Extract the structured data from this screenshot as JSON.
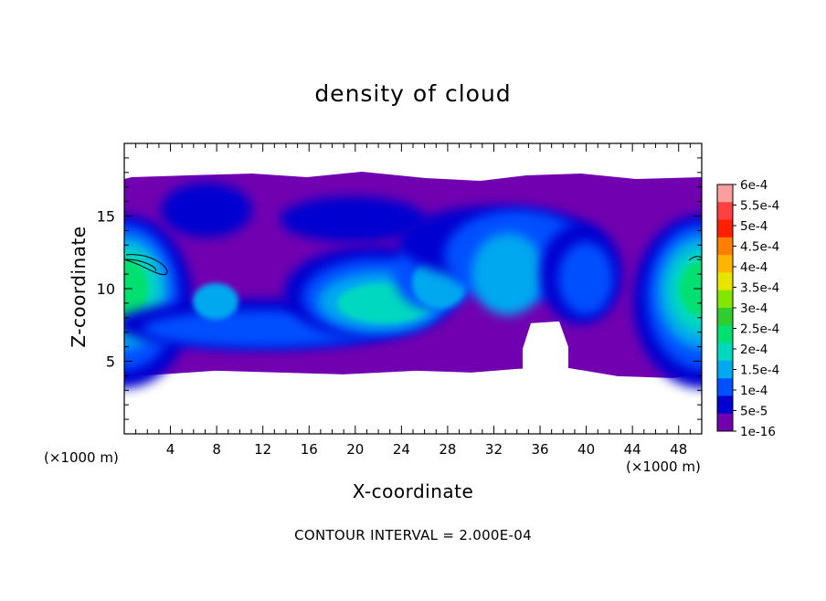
{
  "chart_data": {
    "type": "heatmap",
    "title": "density of cloud",
    "xlabel": "X-coordinate",
    "ylabel": "Z-coordinate",
    "x_unit_label": "(×1000 m)",
    "xlim": [
      0,
      50
    ],
    "ylim": [
      0,
      20
    ],
    "x_ticks": [
      4,
      8,
      12,
      16,
      20,
      24,
      28,
      32,
      36,
      40,
      44,
      48
    ],
    "y_ticks": [
      5,
      10,
      15
    ],
    "cloud_layer": {
      "base_z": 4.6,
      "top_z": 17.8
    },
    "colorbar": {
      "labels": [
        "6e-4",
        "5.5e-4",
        "5e-4",
        "4.5e-4",
        "4e-4",
        "3.5e-4",
        "3e-4",
        "2.5e-4",
        "2e-4",
        "1.5e-4",
        "1e-4",
        "5e-5",
        "1e-16"
      ],
      "colors": [
        "#fa9ea0",
        "#ff4040",
        "#ff2000",
        "#ff8000",
        "#ffb400",
        "#e6e600",
        "#82e600",
        "#30cc30",
        "#00e070",
        "#00d8c0",
        "#00a8f0",
        "#0050ff",
        "#0000d0",
        "#7000b0"
      ]
    },
    "contour_interval_text": "CONTOUR INTERVAL = 2.000E-04",
    "grid": false
  }
}
